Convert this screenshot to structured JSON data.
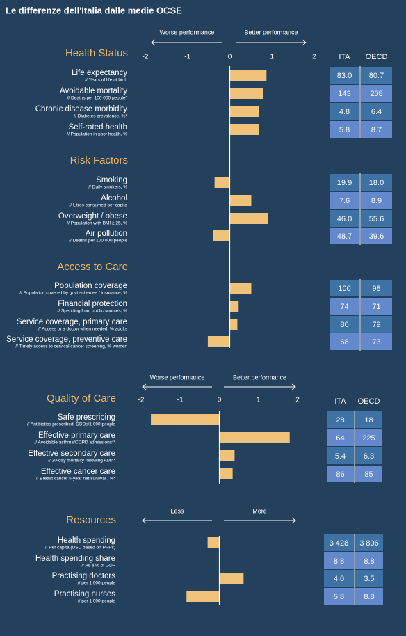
{
  "title": "Le differenze dell'Italia dalle medie OCSE",
  "chart_data": [
    {
      "type": "bar",
      "orientation": "horizontal",
      "arrow_labels": [
        "Worse performance",
        "Better performance"
      ],
      "xlim": [
        -2,
        2
      ],
      "xticks": [
        -2,
        -1,
        0,
        1,
        2
      ],
      "column_headers": [
        "ITA",
        "OECD"
      ],
      "color": "#f0c27a",
      "sections": [
        {
          "title": "Health Status",
          "categories": [
            "Life expectancy",
            "Avoidable mortality",
            "Chronic disease morbidity",
            "Self-rated health"
          ],
          "notes": [
            "// Years of life at birth",
            "// Deaths per 100 000 people*",
            "// Diabetes prevalence, %*",
            "// Population in poor health, %"
          ],
          "values": [
            0.87,
            0.79,
            0.7,
            0.69
          ],
          "table": [
            [
              "83.0",
              "80.7"
            ],
            [
              "143",
              "208"
            ],
            [
              "4.8",
              "6.4"
            ],
            [
              "5.8",
              "8.7"
            ]
          ]
        },
        {
          "title": "Risk Factors",
          "categories": [
            "Smoking",
            "Alcohol",
            "Overweight / obese",
            "Air pollution"
          ],
          "notes": [
            "// Daily smokers, %",
            "// Litres consumed per capita",
            "// Population with BMI ≥ 25, %",
            "// Deaths per 100 000 people"
          ],
          "values": [
            -0.36,
            0.51,
            0.9,
            -0.39
          ],
          "table": [
            [
              "19.9",
              "18.0"
            ],
            [
              "7.6",
              "8.9"
            ],
            [
              "46.0",
              "55.6"
            ],
            [
              "48.7",
              "39.6"
            ]
          ]
        },
        {
          "title": "Access to Care",
          "categories": [
            "Population coverage",
            "Financial protection",
            "Service coverage, primary care",
            "Service coverage, preventive care"
          ],
          "notes": [
            "// Population covered by govt schemes / insurance, %",
            "// Spending from public sources, %",
            "// Access to a doctor when needed, % adults",
            "// Timely access to cervical cancer screening, % women"
          ],
          "values": [
            0.51,
            0.21,
            0.18,
            -0.52
          ],
          "table": [
            [
              "100",
              "98"
            ],
            [
              "74",
              "71"
            ],
            [
              "80",
              "79"
            ],
            [
              "68",
              "73"
            ]
          ]
        }
      ]
    },
    {
      "type": "bar",
      "orientation": "horizontal",
      "arrow_labels": [
        "Worse performance",
        "Better performance"
      ],
      "xlim": [
        -2,
        2
      ],
      "xticks": [
        -2,
        -1,
        0,
        1,
        2
      ],
      "column_headers": [
        "ITA",
        "OECD"
      ],
      "color": "#f0c27a",
      "sections": [
        {
          "title": "Quality of Care",
          "categories": [
            "Safe prescribing",
            "Effective primary care",
            "Effective secondary care",
            "Effective cancer care"
          ],
          "notes": [
            "// Antibiotics prescribed, DDDs/1 000 people",
            "// Avoidable asthma/COPD admissions**",
            "// 30-day mortality following AMI**",
            "// Breast cancer 5-year net survival , %*"
          ],
          "values": [
            -1.75,
            1.8,
            0.39,
            0.34
          ],
          "table": [
            [
              "28",
              "18"
            ],
            [
              "64",
              "225"
            ],
            [
              "5.4",
              "6.3"
            ],
            [
              "86",
              "85"
            ]
          ]
        }
      ]
    },
    {
      "type": "bar",
      "orientation": "horizontal",
      "arrow_labels": [
        "Less",
        "More"
      ],
      "xlim": [
        -2,
        2
      ],
      "color": "#f0c27a",
      "sections": [
        {
          "title": "Resources",
          "categories": [
            "Health spending",
            "Health spending share",
            "Practising doctors",
            "Practising nurses"
          ],
          "notes": [
            "// Per capita (USD based on PPPs)",
            "// As a % of GDP",
            "// per 1 000 people",
            "// per 1 000 people"
          ],
          "values": [
            -0.3,
            0.02,
            0.62,
            -0.84
          ],
          "table": [
            [
              "3 428",
              "3 806"
            ],
            [
              "8.8",
              "8.8"
            ],
            [
              "4.0",
              "3.5"
            ],
            [
              "5.8",
              "8.8"
            ]
          ]
        }
      ]
    }
  ]
}
